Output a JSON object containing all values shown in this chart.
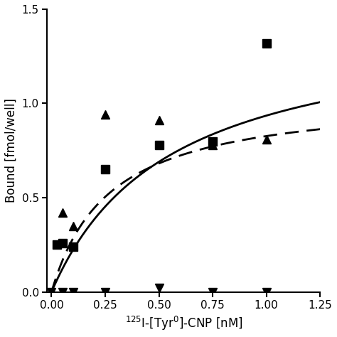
{
  "title": "",
  "xlabel": "$^{125}$I-[Tyr$^{0}$]-CNP [nM]",
  "ylabel": "Bound [fmol/well]",
  "xlim": [
    -0.02,
    1.25
  ],
  "ylim": [
    0.0,
    1.5
  ],
  "xticks": [
    0.0,
    0.25,
    0.5,
    0.75,
    1.0,
    1.25
  ],
  "yticks": [
    0.0,
    0.5,
    1.0,
    1.5
  ],
  "squares_x": [
    0.025,
    0.05,
    0.1,
    0.25,
    0.5,
    0.75,
    1.0
  ],
  "squares_y": [
    0.25,
    0.26,
    0.24,
    0.65,
    0.78,
    0.8,
    1.32
  ],
  "triangles_up_x": [
    0.05,
    0.1,
    0.25,
    0.5,
    0.75,
    1.0
  ],
  "triangles_up_y": [
    0.42,
    0.35,
    0.94,
    0.91,
    0.78,
    0.81
  ],
  "triangles_down_x": [
    0.0,
    0.05,
    0.1,
    0.25,
    0.5,
    0.75,
    1.0
  ],
  "triangles_down_y": [
    0.0,
    0.0,
    0.0,
    0.0,
    0.02,
    0.0,
    0.0
  ],
  "solid_Bmax": 1.45,
  "solid_Kd": 0.55,
  "dashed_Bmax": 1.05,
  "dashed_Kd": 0.27,
  "line_color": "#000000",
  "marker_color": "#000000",
  "background_color": "#ffffff",
  "label_fontsize": 12,
  "tick_fontsize": 11,
  "line_width": 2.0
}
